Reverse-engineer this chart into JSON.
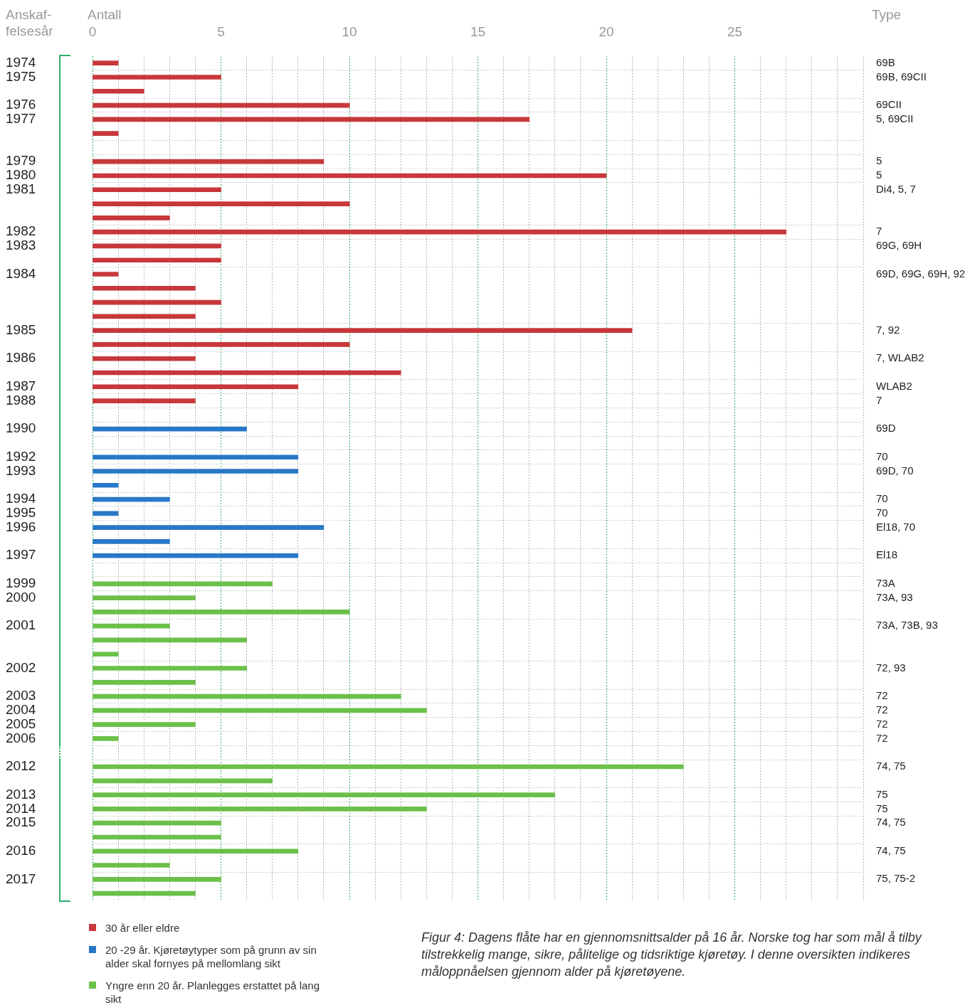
{
  "chart_data": {
    "type": "bar",
    "orientation": "horizontal",
    "xlabel": "Antall",
    "ylabel": "Anskaf-\nfelsesår",
    "y2label": "Type",
    "categories": [
      "1974",
      "1975",
      null,
      "1976",
      "1977",
      null,
      null,
      "1979",
      "1980",
      "1981",
      null,
      null,
      "1982",
      "1983",
      null,
      "1984",
      null,
      null,
      null,
      "1985",
      null,
      "1986",
      null,
      "1987",
      "1988",
      null,
      "1990",
      null,
      "1992",
      "1993",
      null,
      "1994",
      "1995",
      "1996",
      null,
      "1997",
      null,
      "1999",
      "2000",
      null,
      "2001",
      null,
      null,
      "2002",
      null,
      "2003",
      "2004",
      "2005",
      "2006",
      null,
      "2012",
      null,
      "2013",
      "2014",
      "2015",
      null,
      "2016",
      null,
      "2017",
      null
    ],
    "y2_categories": [
      "69B",
      "69B, 69CII",
      null,
      "69CII",
      "5, 69CII",
      null,
      null,
      "5",
      "5",
      "Di4, 5, 7",
      null,
      null,
      "7",
      "69G, 69H",
      null,
      "69D, 69G, 69H, 92",
      null,
      null,
      null,
      "7, 92",
      null,
      "7, WLAB2",
      null,
      "WLAB2",
      "7",
      null,
      "69D",
      null,
      "70",
      "69D, 70",
      null,
      "70",
      "70",
      "El18, 70",
      null,
      "El18",
      null,
      "73A",
      "73A, 93",
      null,
      "73A, 73B, 93",
      null,
      null,
      "72, 93",
      null,
      "72",
      "72",
      "72",
      "72",
      null,
      "74, 75",
      null,
      "75",
      "75",
      "74, 75",
      null,
      "74, 75",
      null,
      "75, 75-2",
      null
    ],
    "series": [
      {
        "name": "30 år eller eldre",
        "color": "#c8373a",
        "values": [
          1,
          5,
          2,
          10,
          17,
          1,
          null,
          9,
          20,
          5,
          10,
          3,
          27,
          5,
          5,
          1,
          4,
          5,
          4,
          21,
          10,
          4,
          12,
          8,
          4,
          null,
          null,
          null,
          null,
          null,
          null,
          null,
          null,
          null,
          null,
          null,
          null,
          null,
          null,
          null,
          null,
          null,
          null,
          null,
          null,
          null,
          null,
          null,
          null,
          null,
          null,
          null,
          null,
          null,
          null,
          null,
          null,
          null,
          null,
          null
        ]
      },
      {
        "name": "20 -29 år. Kjøretøytyper som på grunn av sin alder skal fornyes på mellomlang sikt",
        "color": "#2878c8",
        "values": [
          null,
          null,
          null,
          null,
          null,
          null,
          null,
          null,
          null,
          null,
          null,
          null,
          null,
          null,
          null,
          null,
          null,
          null,
          null,
          null,
          null,
          null,
          null,
          null,
          null,
          null,
          6,
          null,
          8,
          8,
          1,
          3,
          1,
          9,
          3,
          8,
          null,
          null,
          null,
          null,
          null,
          null,
          null,
          null,
          null,
          null,
          null,
          null,
          null,
          null,
          null,
          null,
          null,
          null,
          null,
          null,
          null,
          null,
          null,
          null
        ]
      },
      {
        "name": "Yngre enn 20 år. Planlegges erstattet på lang sikt",
        "color": "#6cc04a",
        "values": [
          null,
          null,
          null,
          null,
          null,
          null,
          null,
          null,
          null,
          null,
          null,
          null,
          null,
          null,
          null,
          null,
          null,
          null,
          null,
          null,
          null,
          null,
          null,
          null,
          null,
          null,
          null,
          null,
          null,
          null,
          null,
          null,
          null,
          null,
          null,
          null,
          null,
          7,
          4,
          10,
          3,
          6,
          1,
          6,
          4,
          12,
          13,
          4,
          1,
          null,
          23,
          7,
          18,
          13,
          5,
          5,
          8,
          3,
          5,
          4
        ]
      }
    ],
    "xlim": [
      0,
      30
    ],
    "xticks": [
      0,
      {
        "value": 1,
        "label": null
      },
      {
        "value": 2,
        "label": null
      },
      {
        "value": 3,
        "label": null
      },
      {
        "value": 4,
        "label": null
      },
      5,
      {
        "value": 6,
        "label": null
      },
      {
        "value": 7,
        "label": null
      },
      {
        "value": 8,
        "label": null
      },
      {
        "value": 9,
        "label": null
      },
      10,
      {
        "value": 11,
        "label": null
      },
      {
        "value": 12,
        "label": null
      },
      {
        "value": 13,
        "label": null
      },
      {
        "value": 14,
        "label": null
      },
      15,
      {
        "value": 16,
        "label": null
      },
      {
        "value": 17,
        "label": null
      },
      {
        "value": 18,
        "label": null
      },
      {
        "value": 19,
        "label": null
      },
      20,
      {
        "value": 21,
        "label": null
      },
      {
        "value": 22,
        "label": null
      },
      {
        "value": 23,
        "label": null
      },
      {
        "value": 24,
        "label": null
      },
      25,
      {
        "value": 26,
        "label": null
      },
      {
        "value": 27,
        "label": null
      },
      {
        "value": 28,
        "label": null
      },
      {
        "value": 29,
        "label": null
      },
      {
        "value": 30,
        "label": null
      }
    ],
    "grid": true,
    "legend": "bottom left",
    "annotations": [
      "Figur 4: Dagens flåte har en gjennomsnittsalder på 16 år. Norske tog har som mål å tilby tilstrekkelig mange, sikre, pålitelige og tidsriktige kjøretøy. I denne oversikten indikeres måloppnåelsen gjennom alder på kjøretøyene."
    ]
  }
}
